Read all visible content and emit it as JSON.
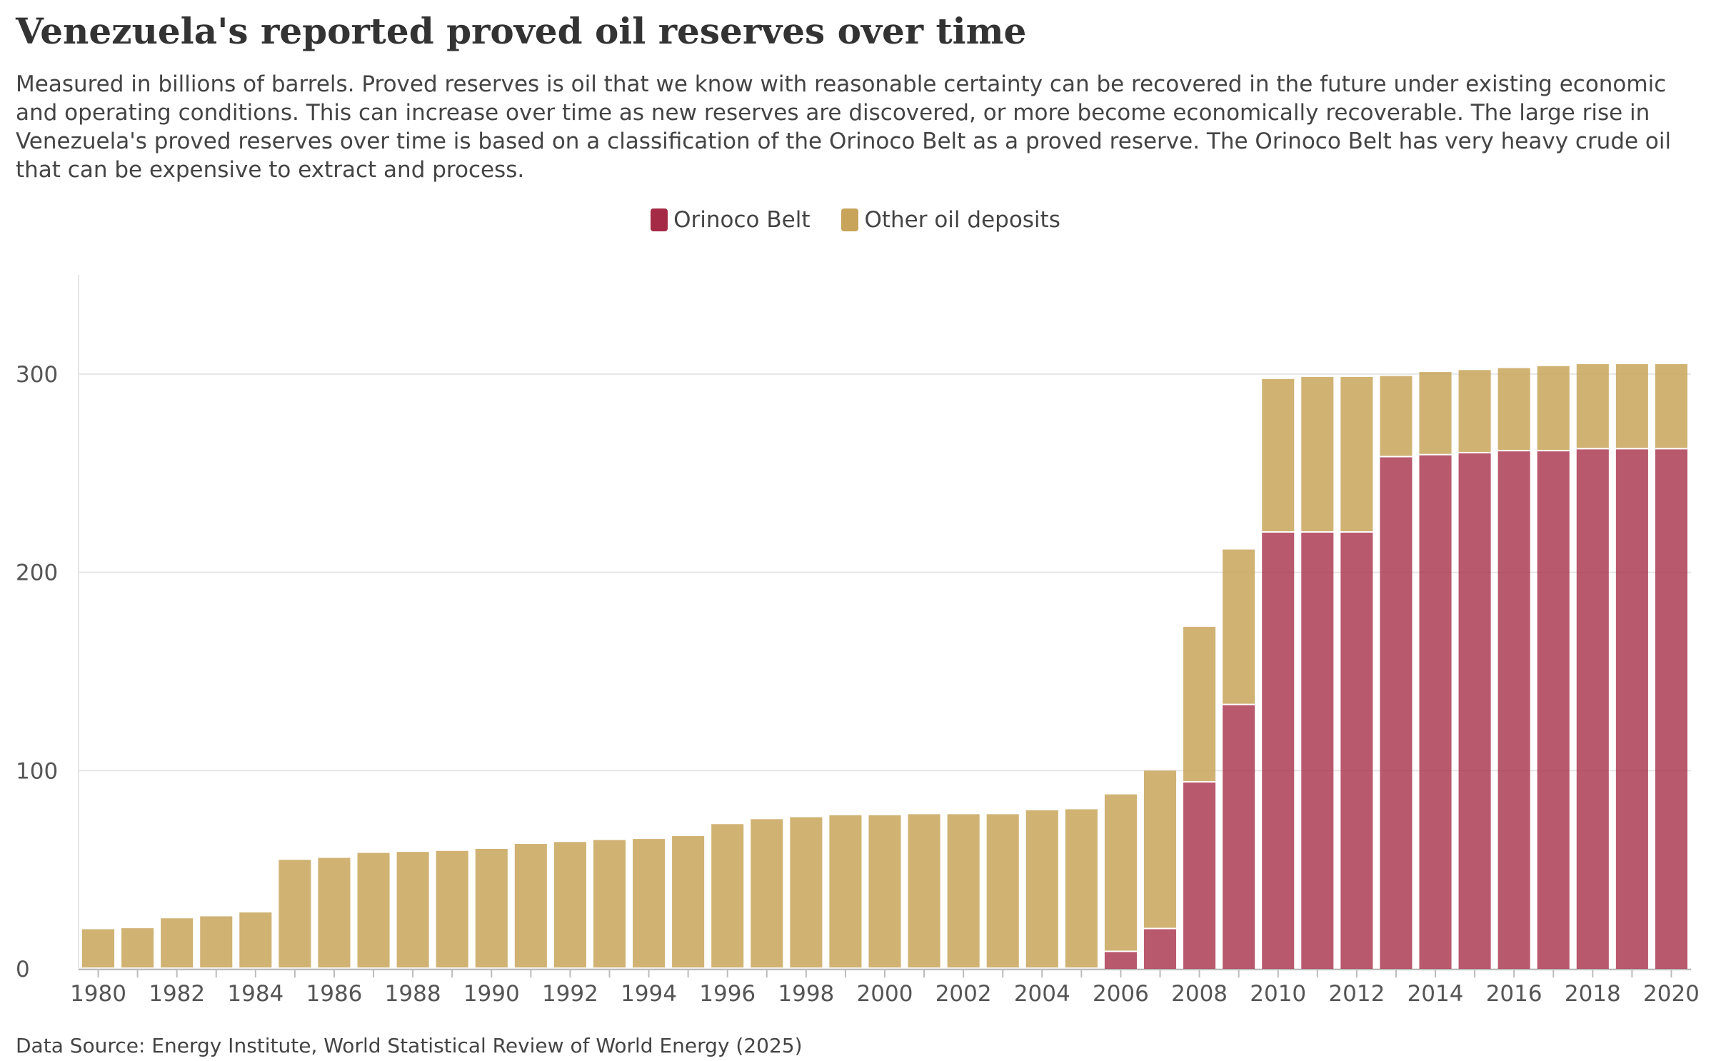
{
  "header": {
    "title": "Venezuela's reported proved oil reserves over time",
    "subtitle": "Measured in billions of barrels. Proved reserves is oil that we know with reasonable certainty can be recovered in the future under existing economic and operating conditions. This can increase over time as new reserves are discovered, or more become economically recoverable. The large rise in Venezuela's proved reserves over time is based on a classification of the Orinoco Belt as a proved reserve. The Orinoco Belt has very heavy crude oil that can be expensive to extract and process."
  },
  "footer": {
    "source": "Data Source: Energy Institute, World Statistical Review of World Energy (2025)"
  },
  "legend": [
    {
      "label": "Orinoco Belt",
      "color": "#a52a45"
    },
    {
      "label": "Other oil deposits",
      "color": "#c8a45a"
    }
  ],
  "chart_data": {
    "type": "bar",
    "stacked": true,
    "legend_position": "top-center",
    "grid": true,
    "ylim": [
      0,
      350
    ],
    "yticks": [
      0,
      100,
      200,
      300
    ],
    "xtick_labels": [
      "1980",
      "1982",
      "1984",
      "1986",
      "1988",
      "1990",
      "1992",
      "1994",
      "1996",
      "1998",
      "2000",
      "2002",
      "2004",
      "2006",
      "2008",
      "2010",
      "2012",
      "2014",
      "2016",
      "2018",
      "2020"
    ],
    "categories": [
      "1980",
      "1981",
      "1982",
      "1983",
      "1984",
      "1985",
      "1986",
      "1987",
      "1988",
      "1989",
      "1990",
      "1991",
      "1992",
      "1993",
      "1994",
      "1995",
      "1996",
      "1997",
      "1998",
      "1999",
      "2000",
      "2001",
      "2002",
      "2003",
      "2004",
      "2005",
      "2006",
      "2007",
      "2008",
      "2009",
      "2010",
      "2011",
      "2012",
      "2013",
      "2014",
      "2015",
      "2016",
      "2017",
      "2018",
      "2019",
      "2020"
    ],
    "series": [
      {
        "name": "Orinoco Belt",
        "color": "#a52a45",
        "values": [
          0,
          0,
          0,
          0,
          0,
          0,
          0,
          0,
          0,
          0,
          0,
          0,
          0,
          0,
          0,
          0,
          0,
          0,
          0,
          0,
          0,
          0,
          0,
          0,
          0,
          0,
          8.5,
          20,
          94,
          133,
          220,
          220,
          220,
          258,
          259,
          260,
          261,
          261,
          262,
          262,
          262
        ]
      },
      {
        "name": "Other oil deposits",
        "color": "#c8a45a",
        "values": [
          20,
          20.5,
          25.5,
          26.5,
          28.5,
          55,
          56,
          58.5,
          59,
          59.5,
          60.5,
          63,
          64,
          65,
          65.5,
          67,
          73,
          75.5,
          76.5,
          77.5,
          77.5,
          78,
          78,
          78,
          80,
          80.5,
          79.5,
          80,
          78.5,
          78.5,
          77.5,
          78.5,
          78.5,
          41,
          42,
          42,
          42,
          43,
          43,
          43,
          43
        ]
      }
    ]
  }
}
